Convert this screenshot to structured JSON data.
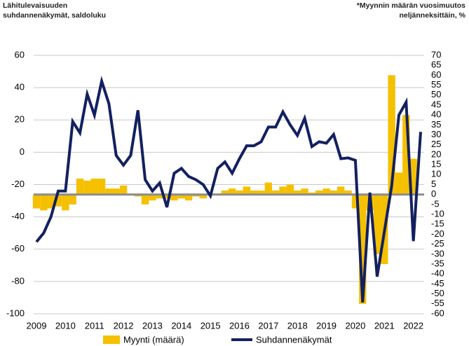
{
  "chart_data": {
    "type": "bar-line",
    "title_lines": [
      "Lähitulevaisuuden",
      "suhdannenäkymät, saldoluku"
    ],
    "note_lines": [
      "*Myynnin määrän vuosimuutos",
      "neljänneksittäin, %"
    ],
    "categories": [
      "2009",
      null,
      null,
      null,
      "2010",
      null,
      null,
      null,
      "2011",
      null,
      null,
      null,
      "2012",
      null,
      null,
      null,
      "2013",
      null,
      null,
      null,
      "2014",
      null,
      null,
      null,
      "2015",
      null,
      null,
      null,
      "2016",
      null,
      null,
      null,
      "2017",
      null,
      null,
      null,
      "2018",
      null,
      null,
      null,
      "2019",
      null,
      null,
      null,
      "2020",
      null,
      null,
      null,
      "2021",
      null,
      null,
      null,
      "2022",
      null
    ],
    "series": [
      {
        "name": "Myynti (määrä)",
        "type": "bar",
        "axis": "y2",
        "color": "#f5c000",
        "values": [
          -7,
          -8,
          -7,
          -6,
          -8,
          -5,
          8,
          7,
          8,
          8,
          3,
          3,
          4.5,
          0.5,
          -1,
          -5,
          -3,
          -2,
          -2,
          -3,
          -2,
          -3,
          -1,
          -2,
          0.5,
          0.5,
          2,
          3,
          2,
          4,
          2,
          2,
          6,
          2,
          4,
          5,
          2,
          3,
          1,
          2,
          3,
          2,
          4,
          2,
          -7,
          -55,
          -8,
          -30,
          -35,
          60,
          11,
          40,
          18,
          null
        ]
      },
      {
        "name": "Suhdannenäkymät",
        "type": "line",
        "axis": "y",
        "color": "#132060",
        "values": [
          -55.5,
          -50,
          -40,
          -24,
          -24,
          19,
          12,
          36,
          23,
          44,
          30,
          -2,
          -8,
          -2,
          26,
          -17,
          -24,
          -19,
          -34,
          -13,
          -10,
          -15,
          -17,
          -20,
          -27,
          -10,
          -6,
          -13,
          -4,
          4,
          4,
          6.5,
          15.6,
          15.6,
          25,
          17,
          10.4,
          21,
          3.5,
          6.5,
          5.6,
          11,
          -4,
          -3.5,
          -5,
          -93,
          -25,
          -77,
          -49,
          -21,
          23,
          31,
          -55,
          12.6
        ]
      }
    ],
    "ylim": [
      -100,
      60
    ],
    "yticks": [
      -100,
      -80,
      -60,
      -40,
      -20,
      0,
      20,
      40,
      60
    ],
    "y2lim": [
      -60,
      70
    ],
    "y2ticks": [
      -60,
      -55,
      -50,
      -45,
      -40,
      -35,
      -30,
      -25,
      -20,
      -15,
      -10,
      -5,
      0,
      5,
      10,
      15,
      20,
      25,
      30,
      35,
      40,
      45,
      50,
      55,
      60,
      65,
      70
    ],
    "grid": true,
    "legend": "bottom"
  }
}
